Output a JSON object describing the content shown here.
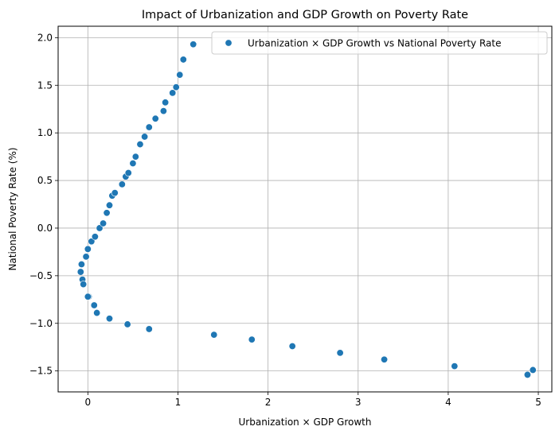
{
  "chart_data": {
    "type": "scatter",
    "title": "Impact of Urbanization and GDP Growth on Poverty Rate",
    "xlabel": "Urbanization × GDP Growth",
    "ylabel": "National Poverty Rate (%)",
    "xlim": [
      -0.33,
      5.15
    ],
    "ylim": [
      -1.72,
      2.12
    ],
    "xticks": [
      0,
      1,
      2,
      3,
      4,
      5
    ],
    "yticks": [
      -1.5,
      -1.0,
      -0.5,
      0.0,
      0.5,
      1.0,
      1.5,
      2.0
    ],
    "xtick_labels": [
      "0",
      "1",
      "2",
      "3",
      "4",
      "5"
    ],
    "ytick_labels": [
      "−1.5",
      "−1.0",
      "−0.5",
      "0.0",
      "0.5",
      "1.0",
      "1.5",
      "2.0"
    ],
    "grid": true,
    "legend_position": "top-right",
    "colors": {
      "points": "#1f77b4"
    },
    "series": [
      {
        "name": "Urbanization × GDP Growth vs National Poverty Rate",
        "x": [
          -0.08,
          -0.07,
          -0.06,
          -0.05,
          -0.02,
          0.0,
          0.01,
          0.04,
          0.08,
          0.13,
          0.17,
          0.21,
          0.24,
          0.27,
          0.3,
          0.38,
          0.42,
          0.45,
          0.5,
          0.53,
          0.58,
          0.63,
          0.68,
          0.75,
          0.84,
          0.86,
          0.94,
          0.98,
          1.02,
          1.06,
          1.17,
          0.0,
          0.07,
          0.1,
          0.24,
          0.44,
          0.68,
          1.4,
          1.82,
          2.27,
          2.8,
          3.29,
          4.07,
          4.88,
          4.94
        ],
        "y": [
          -0.46,
          -0.38,
          -0.54,
          -0.59,
          -0.3,
          -0.22,
          -0.72,
          -0.14,
          -0.09,
          0.0,
          0.05,
          0.16,
          0.24,
          0.34,
          0.37,
          0.46,
          0.54,
          0.58,
          0.68,
          0.75,
          0.88,
          0.96,
          1.06,
          1.15,
          1.23,
          1.32,
          1.42,
          1.48,
          1.61,
          1.77,
          1.93,
          -0.72,
          -0.81,
          -0.89,
          -0.95,
          -1.01,
          -1.06,
          -1.12,
          -1.17,
          -1.24,
          -1.31,
          -1.38,
          -1.45,
          -1.54,
          -1.49
        ]
      }
    ]
  }
}
